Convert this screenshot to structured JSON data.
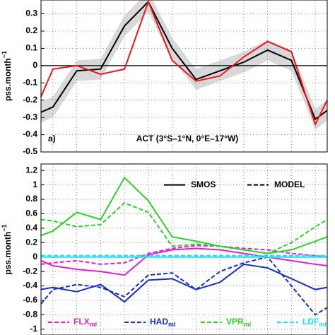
{
  "chart_data": [
    {
      "type": "line",
      "panel": "a)",
      "title": "ACT (3°S–1°N, 0°E–17°W)",
      "ylabel": "pss.month",
      "ylabel_sup": "−1",
      "x": [
        0.5,
        1,
        2,
        3,
        4,
        5,
        6,
        7,
        8,
        9,
        10,
        11,
        12,
        12.5
      ],
      "xlim": [
        0.5,
        12.5
      ],
      "xticks": [
        1,
        2,
        3,
        4,
        5,
        6,
        7,
        8,
        9,
        10,
        11,
        12
      ],
      "ylim": [
        -0.5,
        0.38
      ],
      "yticks": [
        -0.5,
        -0.4,
        -0.3,
        -0.2,
        -0.1,
        0,
        0.1,
        0.2,
        0.3
      ],
      "grid": true,
      "band": {
        "color": "#d9d9d9",
        "lower": [
          -0.33,
          -0.3,
          -0.09,
          -0.08,
          0.17,
          0.31,
          0.04,
          -0.14,
          -0.09,
          -0.04,
          0.03,
          -0.03,
          -0.37,
          -0.32
        ],
        "upper": [
          -0.21,
          -0.18,
          0.03,
          0.04,
          0.29,
          0.43,
          0.16,
          -0.02,
          0.03,
          0.08,
          0.15,
          0.09,
          -0.25,
          -0.2
        ]
      },
      "series": [
        {
          "color": "#000000",
          "values": [
            -0.27,
            -0.24,
            -0.03,
            -0.02,
            0.23,
            0.37,
            0.1,
            -0.08,
            -0.03,
            0.02,
            0.09,
            0.03,
            -0.31,
            -0.26
          ]
        },
        {
          "color": "#e8181b",
          "values": [
            -0.18,
            -0.02,
            0.0,
            -0.05,
            -0.02,
            0.37,
            0.03,
            -0.09,
            -0.06,
            0.05,
            0.14,
            0.08,
            -0.34,
            -0.2
          ]
        }
      ]
    },
    {
      "type": "line",
      "ylabel": "pss.month",
      "ylabel_sup": "−1",
      "x": [
        0.5,
        1,
        2,
        3,
        4,
        5,
        6,
        7,
        8,
        9,
        10,
        11,
        12,
        12.5
      ],
      "xlim": [
        0.5,
        12.5
      ],
      "xticks": [
        1,
        2,
        3,
        4,
        5,
        6,
        7,
        8,
        9,
        10,
        11,
        12
      ],
      "ylim": [
        -1.08,
        1.29
      ],
      "yticks": [
        -1,
        -0.8,
        -0.6,
        -0.4,
        -0.2,
        0,
        0.2,
        0.4,
        0.6,
        0.8,
        1,
        1.2
      ],
      "grid": true,
      "styles": [
        "SMOS",
        "MODEL"
      ],
      "variables": [
        {
          "name": "FLX",
          "sub": "ml",
          "color": "#e020d8",
          "smos": [
            -0.05,
            -0.12,
            -0.17,
            -0.2,
            -0.25,
            0.03,
            0.1,
            0.12,
            0.1,
            0.05,
            0.0,
            -0.05,
            -0.1,
            -0.12
          ],
          "model": [
            -0.1,
            -0.08,
            -0.05,
            -0.1,
            -0.08,
            0.05,
            0.12,
            0.16,
            0.15,
            0.12,
            0.1,
            0.05,
            0.02,
            0.0
          ]
        },
        {
          "name": "HAD",
          "sub": "ml",
          "color": "#1a2fbf",
          "smos": [
            -0.45,
            -0.42,
            -0.48,
            -0.38,
            -0.62,
            -0.32,
            -0.3,
            -0.45,
            -0.35,
            -0.1,
            -0.15,
            -0.3,
            -0.45,
            -0.42
          ],
          "model": [
            -0.65,
            -0.45,
            -0.38,
            -0.42,
            -0.55,
            -0.25,
            -0.22,
            -0.45,
            -0.2,
            -0.08,
            0.0,
            -0.4,
            -0.8,
            -0.7
          ]
        },
        {
          "name": "VPR",
          "sub": "ml",
          "color": "#2fd12a",
          "smos": [
            0.3,
            0.36,
            0.62,
            0.52,
            1.1,
            0.78,
            0.28,
            0.22,
            0.15,
            0.1,
            0.05,
            0.1,
            0.22,
            0.28
          ],
          "model": [
            0.52,
            0.5,
            0.42,
            0.45,
            0.75,
            0.62,
            0.15,
            0.18,
            0.15,
            0.1,
            0.05,
            0.2,
            0.42,
            0.52
          ]
        },
        {
          "name": "LDF",
          "sub": "ml",
          "color": "#22e0f0",
          "smos": [
            0,
            0,
            0,
            0,
            0,
            0,
            0,
            0,
            0,
            0,
            0,
            0,
            0,
            0
          ],
          "model": [
            0.02,
            0.02,
            0.02,
            0.02,
            0.02,
            0.02,
            0.02,
            0.02,
            0.02,
            0.02,
            0.02,
            0.02,
            0.02,
            0.02
          ]
        }
      ]
    }
  ]
}
